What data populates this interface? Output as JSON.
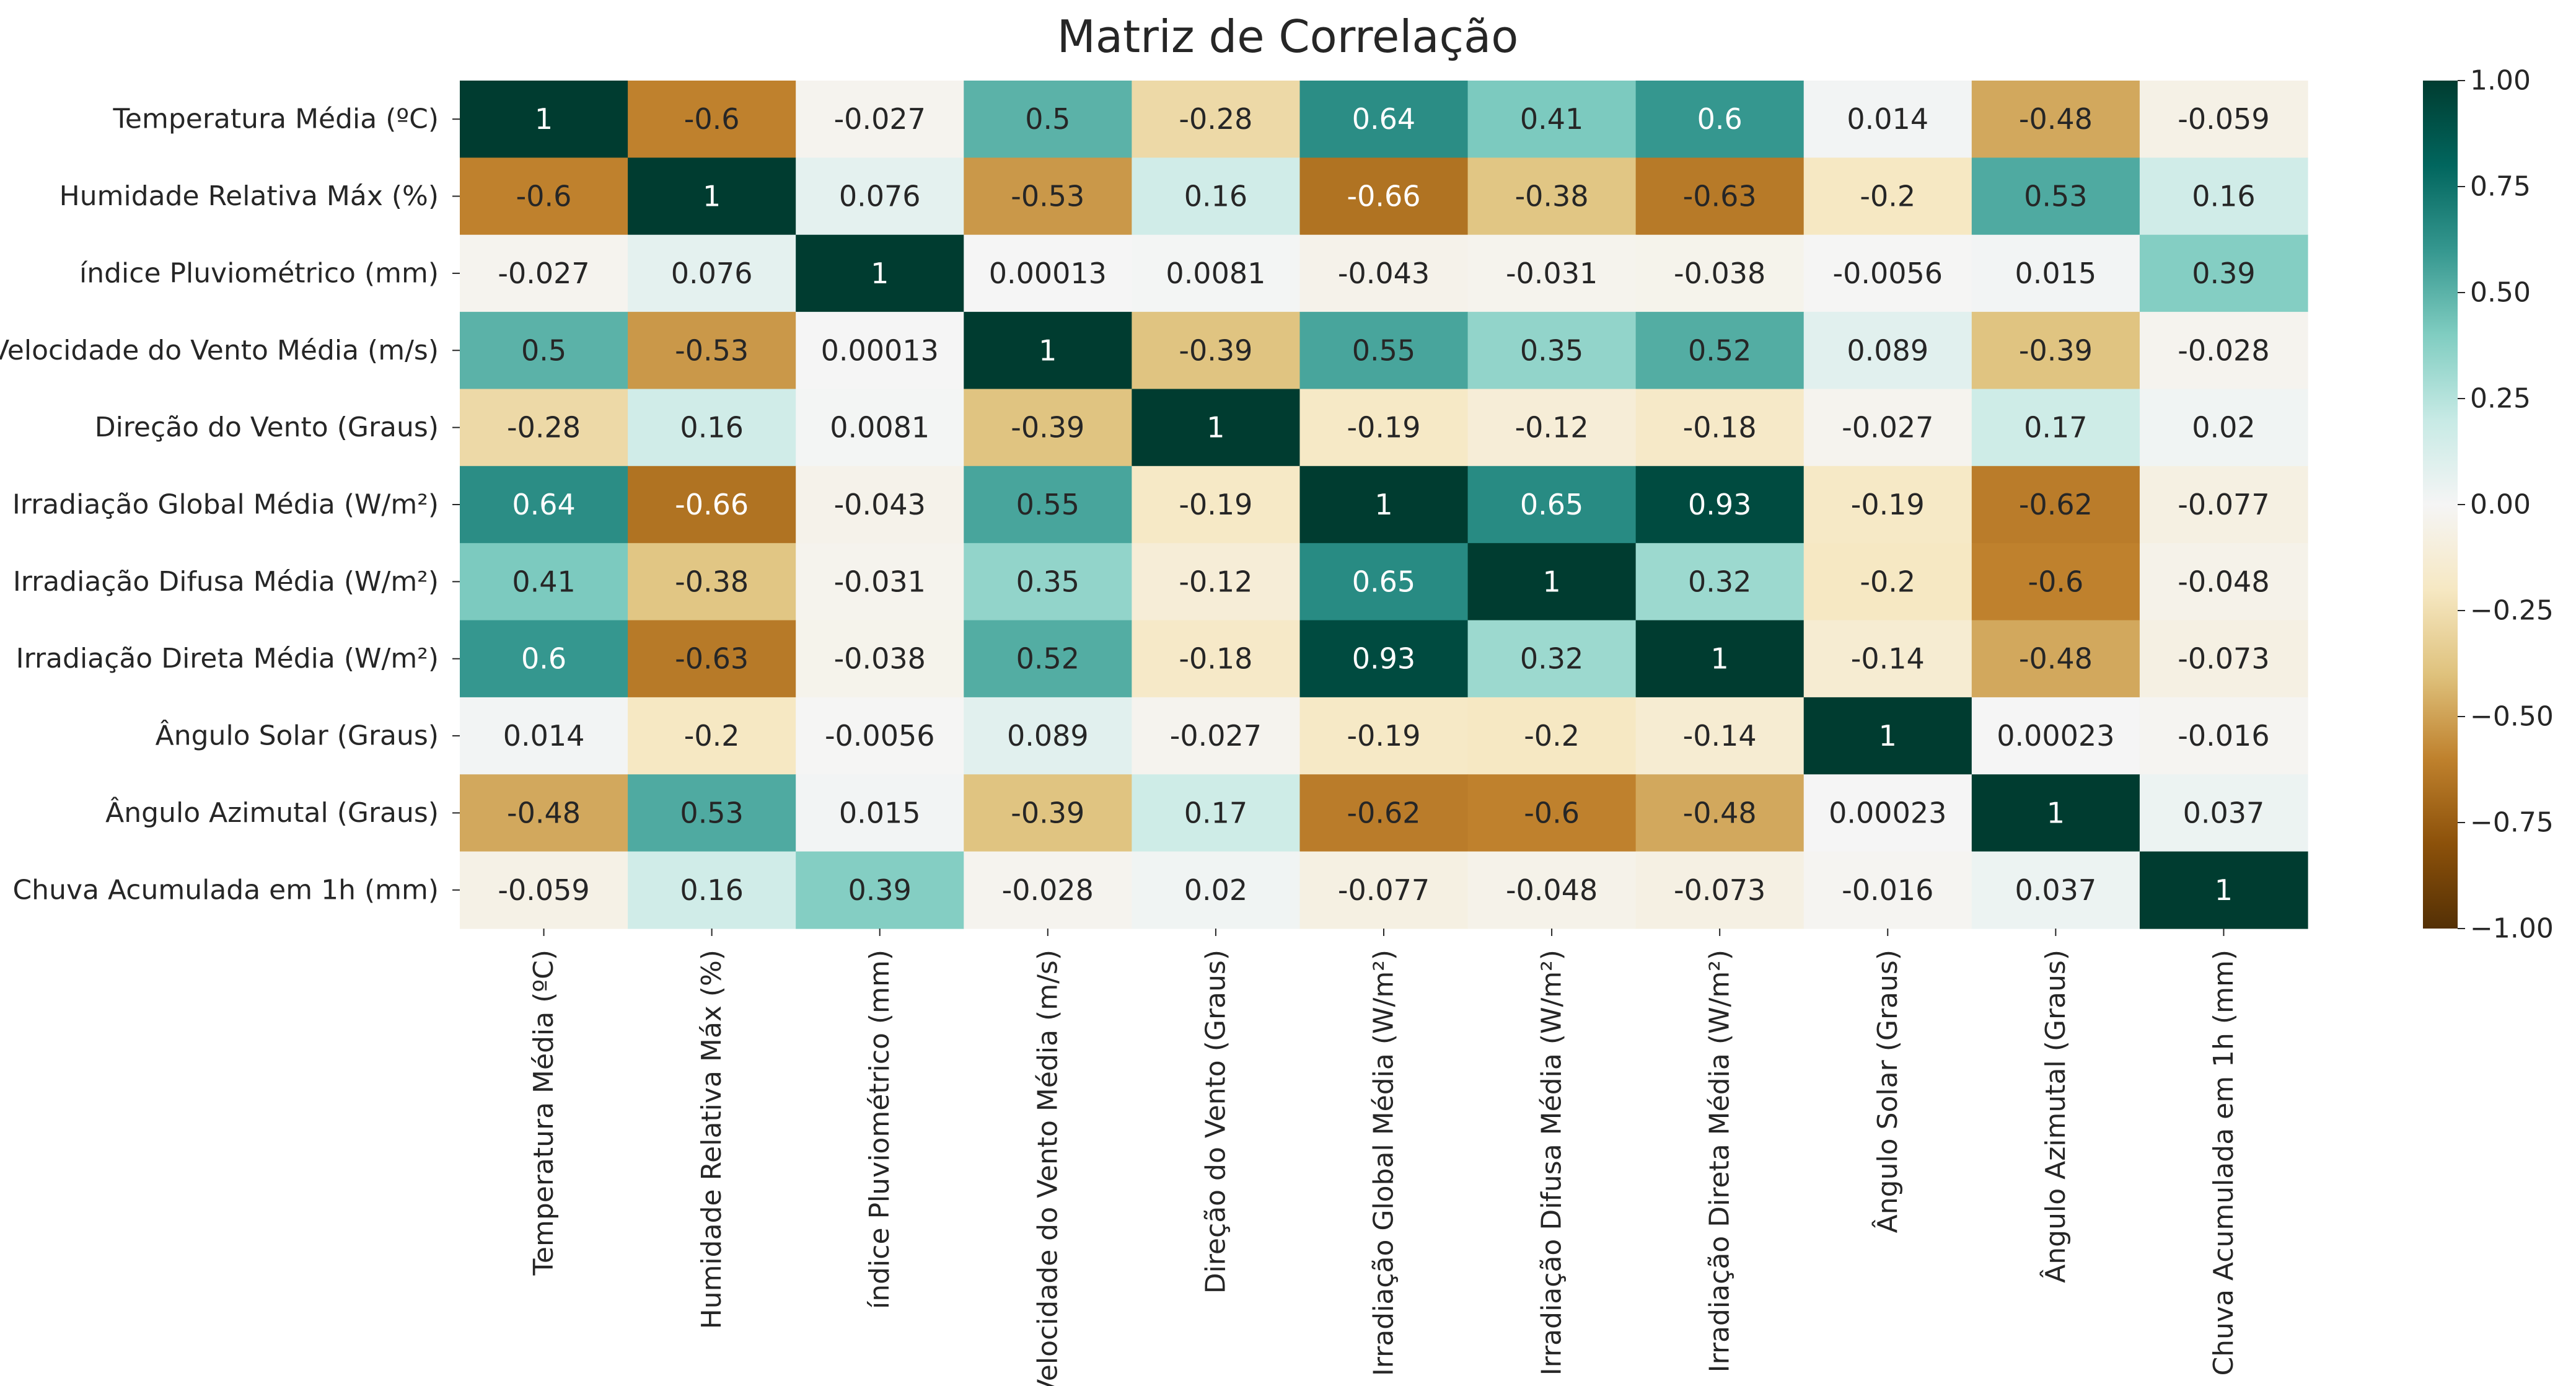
{
  "chart_data": {
    "type": "heatmap",
    "title": "Matriz de Correlação",
    "labels": [
      "Temperatura Média (ºC)",
      "Humidade Relativa Máx (%)",
      "índice Pluviométrico (mm)",
      "Velocidade do Vento Média (m/s)",
      "Direção do Vento (Graus)",
      "Irradiação Global Média (W/m²)",
      "Irradiação Difusa Média (W/m²)",
      "Irradiação Direta Média (W/m²)",
      "Ângulo Solar (Graus)",
      "Ângulo Azimutal (Graus)",
      "Chuva Acumulada em 1h (mm)"
    ],
    "values": [
      [
        "1",
        "-0.6",
        "-0.027",
        "0.5",
        "-0.28",
        "0.64",
        "0.41",
        "0.6",
        "0.014",
        "-0.48",
        "-0.059"
      ],
      [
        "-0.6",
        "1",
        "0.076",
        "-0.53",
        "0.16",
        "-0.66",
        "-0.38",
        "-0.63",
        "-0.2",
        "0.53",
        "0.16"
      ],
      [
        "-0.027",
        "0.076",
        "1",
        "0.00013",
        "0.0081",
        "-0.043",
        "-0.031",
        "-0.038",
        "-0.0056",
        "0.015",
        "0.39"
      ],
      [
        "0.5",
        "-0.53",
        "0.00013",
        "1",
        "-0.39",
        "0.55",
        "0.35",
        "0.52",
        "0.089",
        "-0.39",
        "-0.028"
      ],
      [
        "-0.28",
        "0.16",
        "0.0081",
        "-0.39",
        "1",
        "-0.19",
        "-0.12",
        "-0.18",
        "-0.027",
        "0.17",
        "0.02"
      ],
      [
        "0.64",
        "-0.66",
        "-0.043",
        "0.55",
        "-0.19",
        "1",
        "0.65",
        "0.93",
        "-0.19",
        "-0.62",
        "-0.077"
      ],
      [
        "0.41",
        "-0.38",
        "-0.031",
        "0.35",
        "-0.12",
        "0.65",
        "1",
        "0.32",
        "-0.2",
        "-0.6",
        "-0.048"
      ],
      [
        "0.6",
        "-0.63",
        "-0.038",
        "0.52",
        "-0.18",
        "0.93",
        "0.32",
        "1",
        "-0.14",
        "-0.48",
        "-0.073"
      ],
      [
        "0.014",
        "-0.2",
        "-0.0056",
        "0.089",
        "-0.027",
        "-0.19",
        "-0.2",
        "-0.14",
        "1",
        "0.00023",
        "-0.016"
      ],
      [
        "-0.48",
        "0.53",
        "0.015",
        "-0.39",
        "0.17",
        "-0.62",
        "-0.6",
        "-0.48",
        "0.00023",
        "1",
        "0.037"
      ],
      [
        "-0.059",
        "0.16",
        "0.39",
        "-0.028",
        "0.02",
        "-0.077",
        "-0.048",
        "-0.073",
        "-0.016",
        "0.037",
        "1"
      ]
    ],
    "colormap": "BrBG",
    "colormap_stops": [
      "#543005",
      "#8c510a",
      "#bf812d",
      "#dfc27d",
      "#f6e8c3",
      "#f5f5f5",
      "#c7eae5",
      "#80cdc1",
      "#35978f",
      "#01665e",
      "#003c30"
    ],
    "vmin": -1.0,
    "vmax": 1.0,
    "colorbar_ticks": [
      "1.00",
      "0.75",
      "0.50",
      "0.25",
      "0.00",
      "−0.25",
      "−0.50",
      "−0.75",
      "−1.00"
    ],
    "colorbar_tick_values": [
      1.0,
      0.75,
      0.5,
      0.25,
      0.0,
      -0.25,
      -0.5,
      -0.75,
      -1.0
    ],
    "annotated": true,
    "legend_placement": "right",
    "grid": false
  }
}
